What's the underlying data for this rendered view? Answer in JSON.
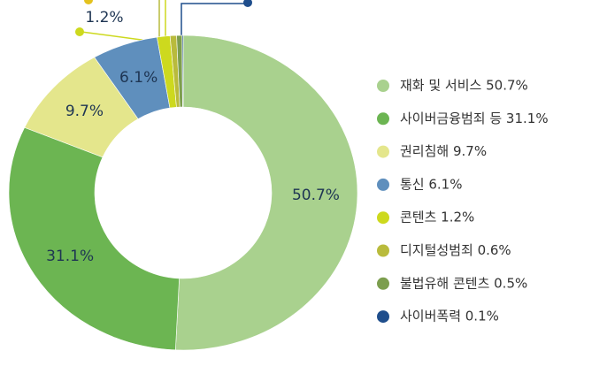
{
  "chart_data": {
    "type": "donut",
    "categories": [
      "재화 및 서비스 50.7%",
      "사이버금융범죄 등 31.1%",
      "권리침해 9.7%",
      "통신 6.1%",
      "콘텐츠 1.2%",
      "디지털성범죄 0.6%",
      "불법유해 콘텐츠 0.5%",
      "사이버폭력 0.1%"
    ],
    "values": [
      50.7,
      31.1,
      9.7,
      6.1,
      1.2,
      0.6,
      0.5,
      0.1
    ],
    "value_labels": [
      "50.7%",
      "31.1%",
      "9.7%",
      "6.1%",
      "1.2%",
      null,
      null,
      null
    ],
    "colors": [
      "#a9d18e",
      "#6cb552",
      "#e4e68c",
      "#5f8fbd",
      "#cdd91e",
      "#b9bb3c",
      "#7c9e4e",
      "#1f4e8c"
    ],
    "legend": "right"
  }
}
